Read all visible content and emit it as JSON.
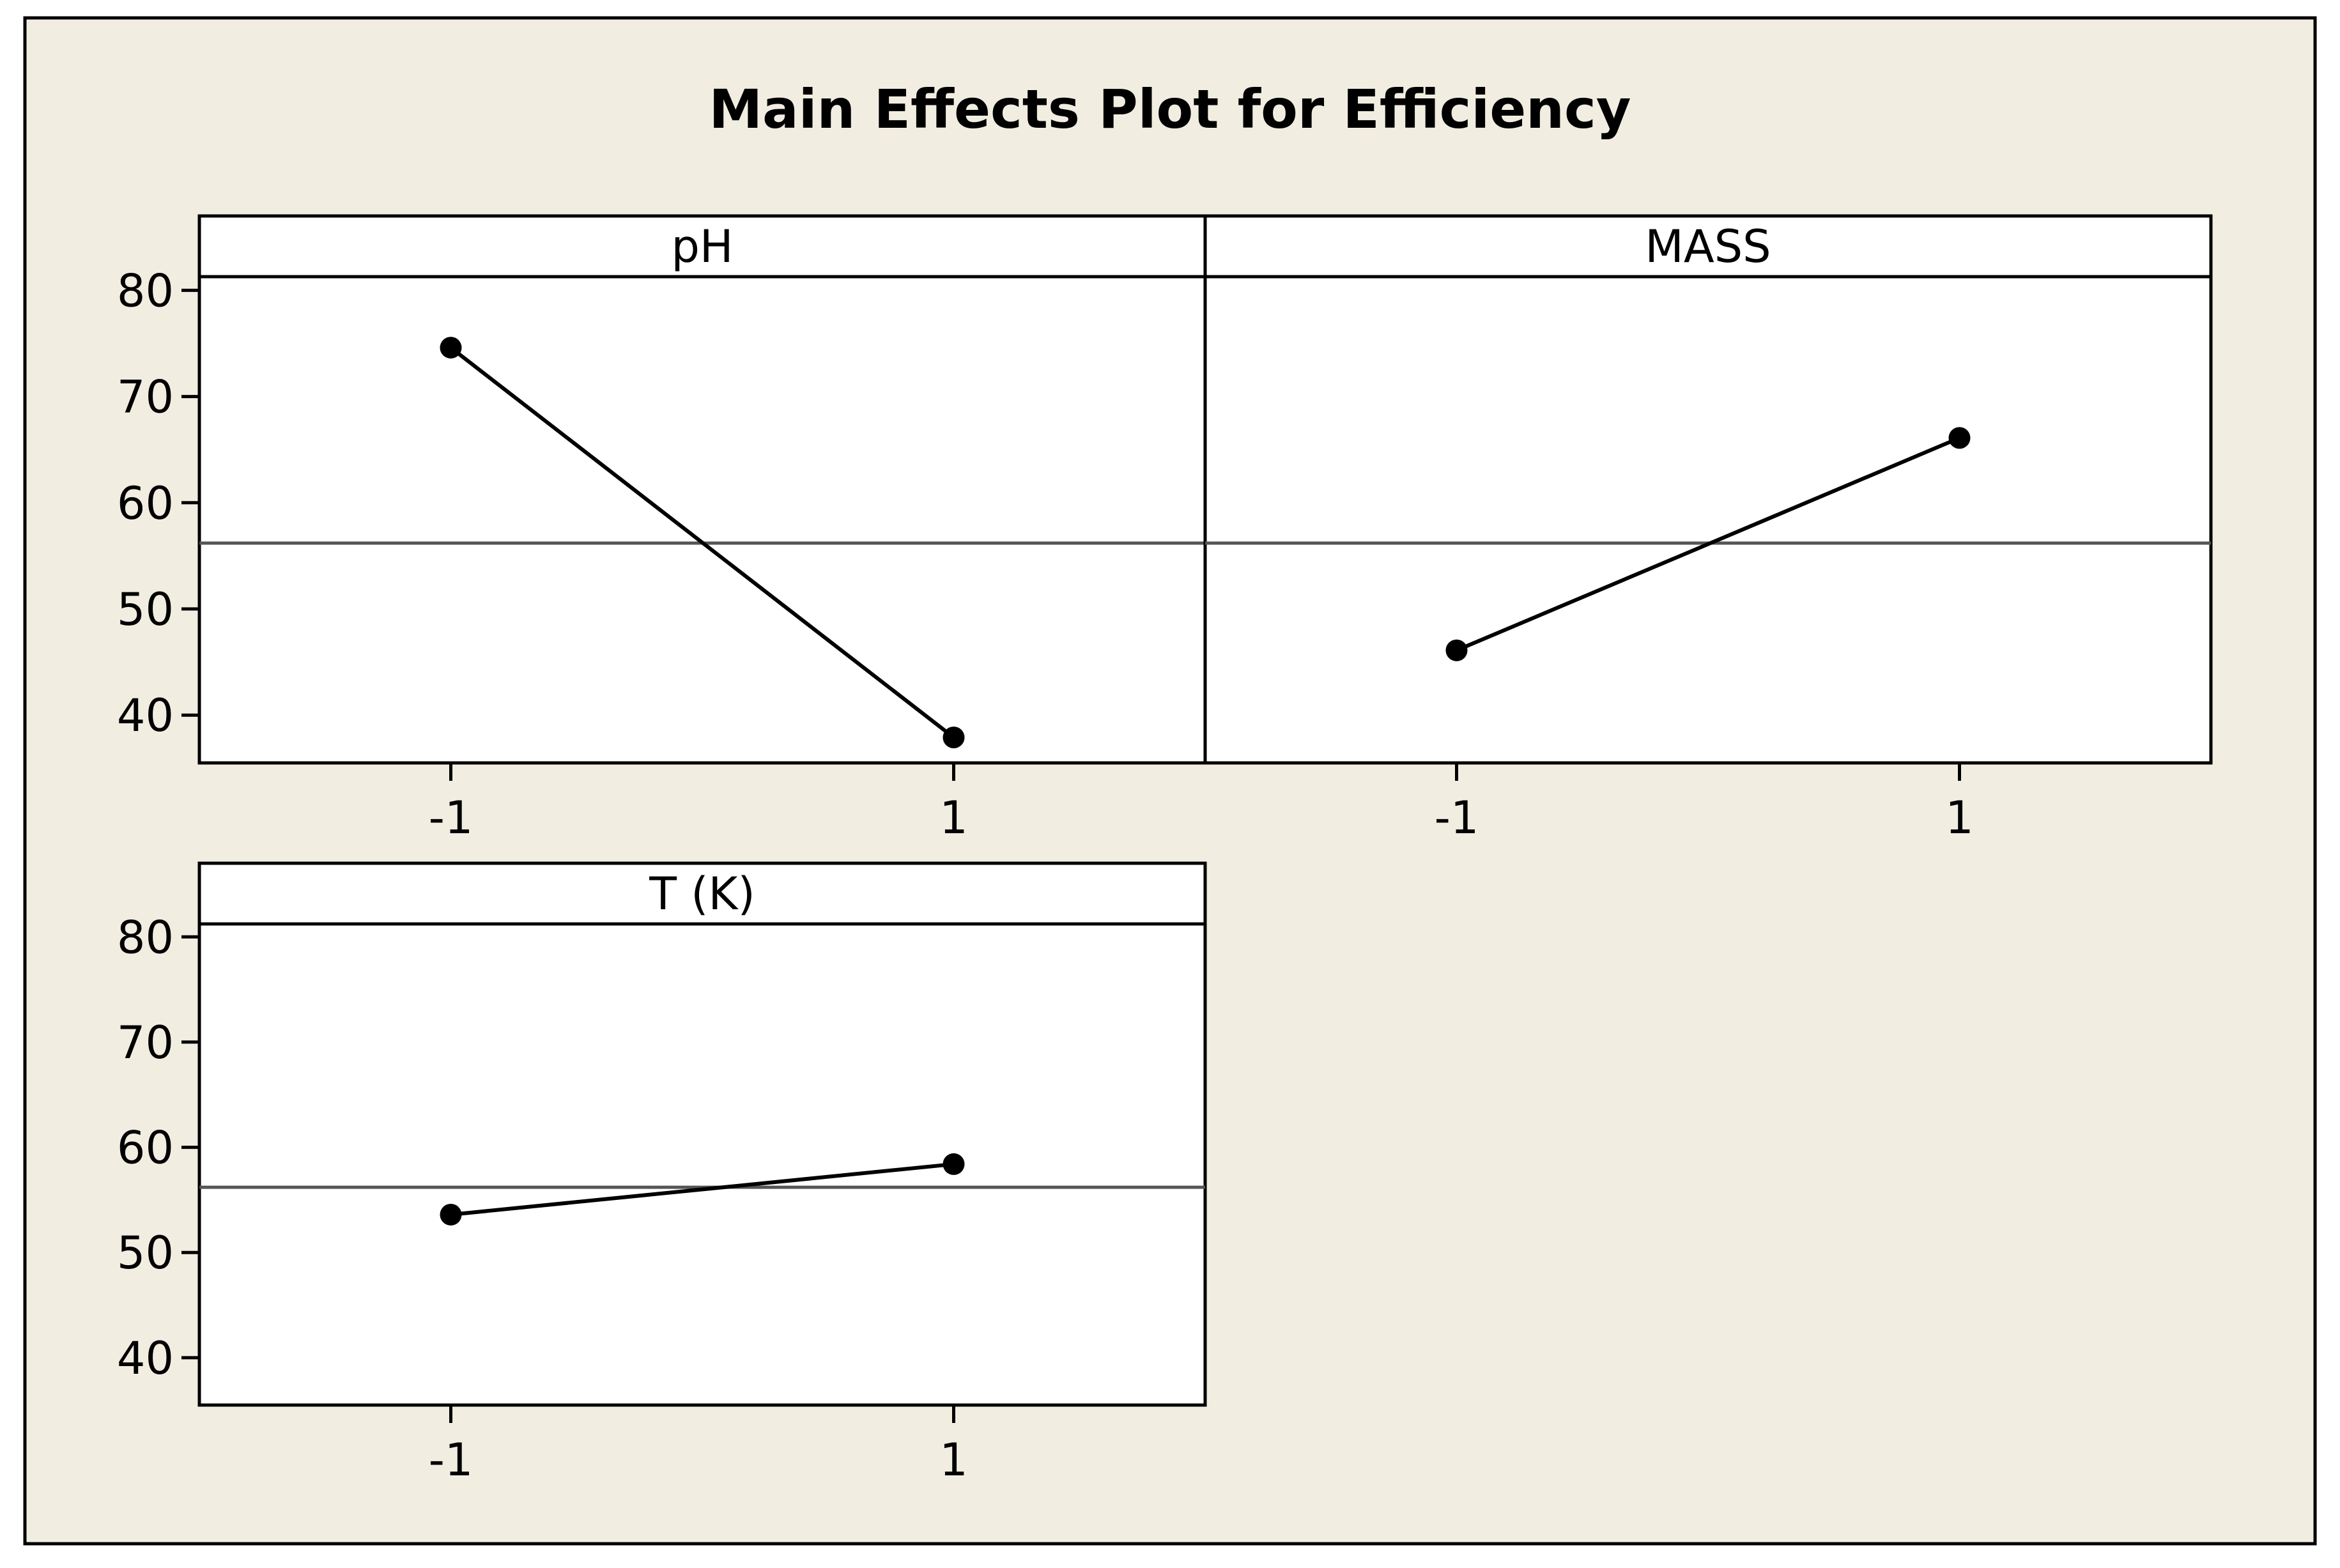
{
  "chart_data": {
    "type": "line",
    "title": "Main Effects Plot for Efficiency",
    "layout": "panel-grid",
    "reference_line": {
      "value": 56.2,
      "color": "#555555"
    },
    "ylim": [
      35.5,
      87
    ],
    "yticks": [
      40,
      50,
      60,
      70,
      80
    ],
    "xlim": [
      -2,
      2
    ],
    "xticks": [
      -1,
      1
    ],
    "xtick_labels": [
      "-1",
      "1"
    ],
    "colors": {
      "background": "#f2ede1",
      "panel": "#ffffff",
      "frame": "#000000",
      "series": "#000000"
    },
    "panels": [
      {
        "title": "pH",
        "x": [
          -1,
          1
        ],
        "y": [
          74.6,
          37.9
        ]
      },
      {
        "title": "MASS",
        "x": [
          -1,
          1
        ],
        "y": [
          46.1,
          66.1
        ]
      },
      {
        "title": "T (K)",
        "x": [
          -1,
          1
        ],
        "y": [
          53.6,
          58.4
        ]
      }
    ]
  }
}
